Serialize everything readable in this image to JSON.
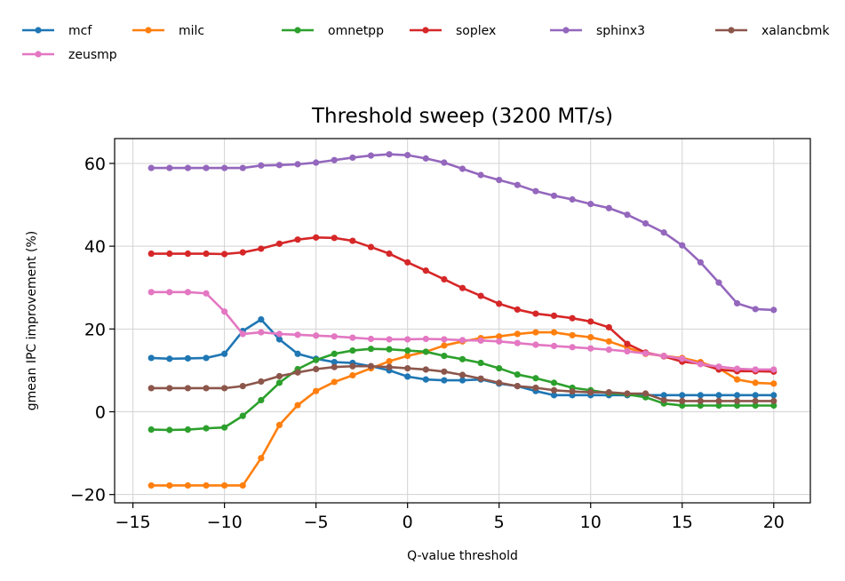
{
  "chart_data": {
    "type": "line",
    "title": "Threshold sweep (3200 MT/s)",
    "xlabel": "Q-value threshold",
    "ylabel": "gmean IPC improvement (%)",
    "xlim": [
      -16,
      22
    ],
    "ylim": [
      -22,
      66
    ],
    "xticks": [
      -15,
      -10,
      -5,
      0,
      5,
      10,
      15,
      20
    ],
    "yticks": [
      -20,
      0,
      20,
      40,
      60
    ],
    "xtick_labels": [
      "−15",
      "−10",
      "−5",
      "0",
      "5",
      "10",
      "15",
      "20"
    ],
    "ytick_labels": [
      "−20",
      "0",
      "20",
      "40",
      "60"
    ],
    "grid": true,
    "legend_position": "top, above plot, 6 columns",
    "x": [
      -14,
      -13,
      -12,
      -11,
      -10,
      -9,
      -8,
      -7,
      -6,
      -5,
      -4,
      -3,
      -2,
      -1,
      0,
      1,
      2,
      3,
      4,
      5,
      6,
      7,
      8,
      9,
      10,
      11,
      12,
      13,
      14,
      15,
      16,
      17,
      18,
      19,
      20
    ],
    "series": [
      {
        "name": "mcf",
        "color": "#1f77b4",
        "values": [
          13,
          12.8,
          12.9,
          13,
          14,
          19.5,
          22.3,
          17.5,
          14,
          12.8,
          12,
          11.8,
          11,
          10,
          8.5,
          7.8,
          7.6,
          7.6,
          7.8,
          6.8,
          6.2,
          5,
          4,
          4,
          4,
          4,
          4,
          4,
          4,
          4,
          4,
          4,
          4,
          4,
          4
        ]
      },
      {
        "name": "milc",
        "color": "#ff7f0e",
        "values": [
          -17.8,
          -17.8,
          -17.8,
          -17.8,
          -17.8,
          -17.8,
          -11.2,
          -3.2,
          1.6,
          5,
          7.2,
          8.8,
          10.5,
          12.2,
          13.5,
          14.5,
          16,
          17,
          17.8,
          18.2,
          18.8,
          19.2,
          19.2,
          18.5,
          18,
          17,
          15.5,
          14,
          13.5,
          13,
          12,
          10.5,
          7.8,
          7,
          6.8
        ]
      },
      {
        "name": "omnetpp",
        "color": "#2ca02c",
        "values": [
          -4.3,
          -4.4,
          -4.3,
          -4,
          -3.8,
          -1,
          2.8,
          7,
          10.3,
          12.5,
          14,
          14.8,
          15.2,
          15.1,
          14.8,
          14.5,
          13.5,
          12.7,
          11.8,
          10.5,
          9,
          8.1,
          7,
          5.8,
          5.2,
          4.5,
          4.2,
          3.5,
          2,
          1.5,
          1.5,
          1.5,
          1.5,
          1.5,
          1.5
        ]
      },
      {
        "name": "soplex",
        "color": "#d62728",
        "values": [
          38.2,
          38.2,
          38.2,
          38.2,
          38.1,
          38.5,
          39.4,
          40.6,
          41.6,
          42.1,
          42,
          41.3,
          39.8,
          38.2,
          36.1,
          34.1,
          32,
          29.9,
          28,
          26.1,
          24.7,
          23.7,
          23.2,
          22.6,
          21.8,
          20.4,
          16.4,
          14.3,
          13.4,
          12.1,
          11.6,
          10.2,
          9.8,
          9.8,
          9.7
        ]
      },
      {
        "name": "sphinx3",
        "color": "#9467bd",
        "values": [
          58.9,
          58.9,
          58.9,
          58.9,
          58.9,
          58.9,
          59.5,
          59.6,
          59.8,
          60.2,
          60.8,
          61.4,
          61.9,
          62.2,
          62,
          61.2,
          60.2,
          58.7,
          57.2,
          56,
          54.8,
          53.3,
          52.2,
          51.3,
          50.2,
          49.2,
          47.6,
          45.5,
          43.3,
          40.2,
          36.1,
          31.2,
          26.2,
          24.8,
          24.6
        ]
      },
      {
        "name": "xalancbmk",
        "color": "#8c564b",
        "values": [
          5.7,
          5.7,
          5.7,
          5.7,
          5.7,
          6.2,
          7.3,
          8.6,
          9.5,
          10.3,
          10.8,
          11,
          11,
          10.8,
          10.5,
          10.2,
          9.7,
          8.9,
          8,
          7,
          6.2,
          5.8,
          5.2,
          4.9,
          4.7,
          4.7,
          4.4,
          4.4,
          2.8,
          2.6,
          2.6,
          2.6,
          2.6,
          2.6,
          2.6
        ]
      },
      {
        "name": "zeusmp",
        "color": "#e377c2",
        "values": [
          28.9,
          28.9,
          28.9,
          28.6,
          24.2,
          18.8,
          19.2,
          18.8,
          18.6,
          18.4,
          18.2,
          17.9,
          17.6,
          17.5,
          17.5,
          17.6,
          17.5,
          17.3,
          17.2,
          17,
          16.6,
          16.2,
          15.9,
          15.6,
          15.3,
          15,
          14.6,
          14.1,
          13.5,
          12.8,
          11.5,
          10.9,
          10.4,
          10.2,
          10.2
        ]
      }
    ]
  }
}
